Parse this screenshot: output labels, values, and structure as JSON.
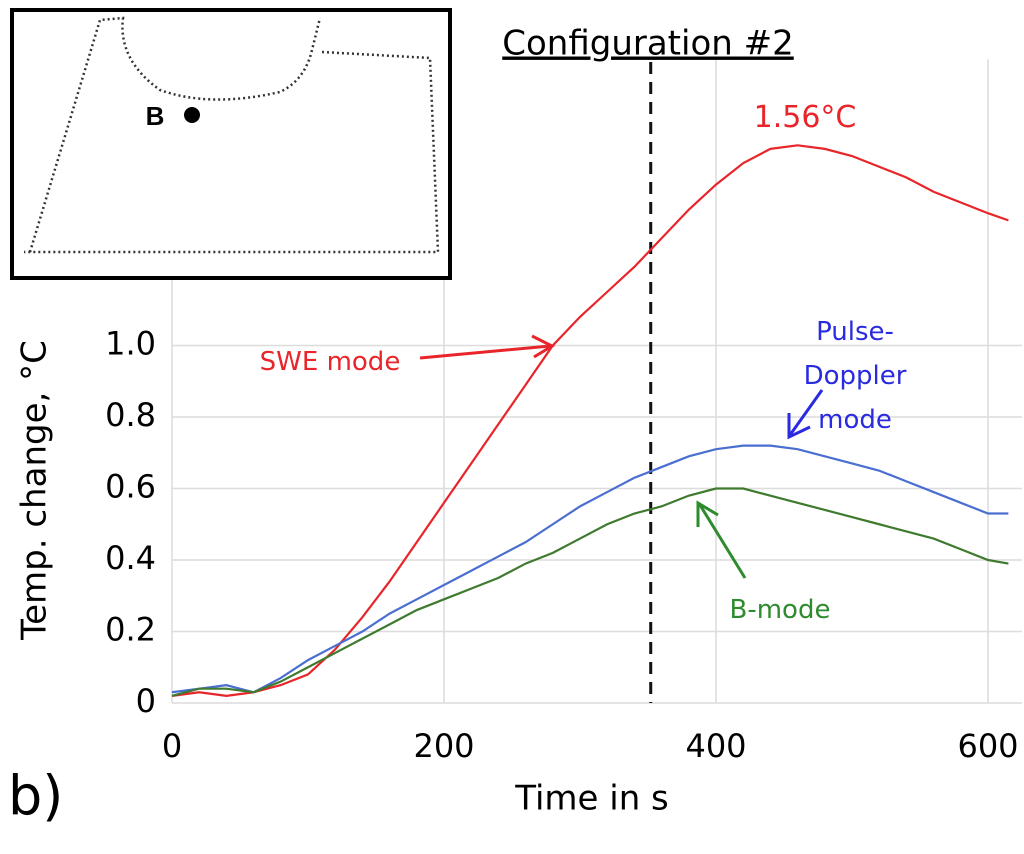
{
  "chart_data": {
    "type": "line",
    "title": "Configuration #2",
    "panel_label": "b)",
    "x_label": "Time in s",
    "y_label": "Temp. change, °C",
    "x": [
      0,
      20,
      40,
      60,
      80,
      100,
      120,
      140,
      160,
      180,
      200,
      220,
      240,
      260,
      280,
      300,
      320,
      340,
      360,
      380,
      400,
      420,
      440,
      460,
      480,
      500,
      520,
      540,
      560,
      580,
      600,
      615
    ],
    "series": [
      {
        "name": "SWE mode",
        "color": "#e8252a",
        "values": [
          0.02,
          0.03,
          0.02,
          0.03,
          0.05,
          0.08,
          0.15,
          0.24,
          0.34,
          0.45,
          0.56,
          0.67,
          0.78,
          0.89,
          1.0,
          1.08,
          1.15,
          1.22,
          1.3,
          1.38,
          1.45,
          1.51,
          1.55,
          1.56,
          1.55,
          1.53,
          1.5,
          1.47,
          1.43,
          1.4,
          1.37,
          1.35
        ]
      },
      {
        "name": "Pulse-Doppler mode",
        "color": "#4a6fd0",
        "label_color": "#2a2ae0",
        "values": [
          0.03,
          0.04,
          0.05,
          0.03,
          0.07,
          0.12,
          0.16,
          0.2,
          0.25,
          0.29,
          0.33,
          0.37,
          0.41,
          0.45,
          0.5,
          0.55,
          0.59,
          0.63,
          0.66,
          0.69,
          0.71,
          0.72,
          0.72,
          0.71,
          0.69,
          0.67,
          0.65,
          0.62,
          0.59,
          0.56,
          0.53,
          0.53
        ]
      },
      {
        "name": "B-mode",
        "color": "#3f7a2e",
        "label_color": "#2e8b2e",
        "values": [
          0.02,
          0.04,
          0.04,
          0.03,
          0.06,
          0.1,
          0.14,
          0.18,
          0.22,
          0.26,
          0.29,
          0.32,
          0.35,
          0.39,
          0.42,
          0.46,
          0.5,
          0.53,
          0.55,
          0.58,
          0.6,
          0.6,
          0.58,
          0.56,
          0.54,
          0.52,
          0.5,
          0.48,
          0.46,
          0.43,
          0.4,
          0.39
        ]
      }
    ],
    "peak_label": "1.56°C",
    "vline": 352,
    "inset_point_label": "B",
    "xlim": [
      0,
      625
    ],
    "xticks": [
      0,
      200,
      400,
      600
    ],
    "ylim": [
      0,
      1.8
    ],
    "yticks": [
      0,
      0.2,
      0.4,
      0.6,
      0.8,
      {
        "value": 1,
        "label": "1.0"
      }
    ],
    "grid": true
  }
}
